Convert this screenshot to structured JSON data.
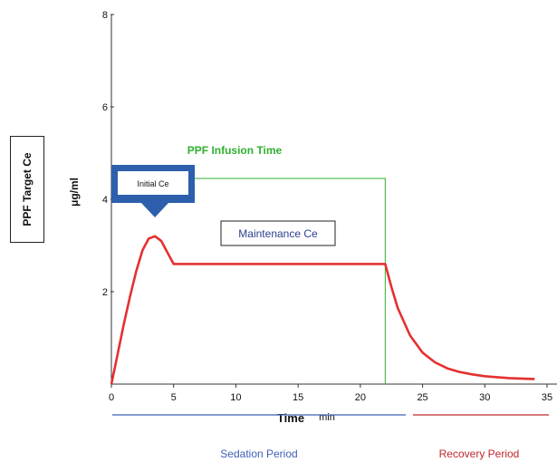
{
  "chart_data": {
    "type": "line",
    "xlabel": "Time",
    "x_unit": "min",
    "ylabel": "PPF Target Ce",
    "y_unit": "μg/ml",
    "xlim": [
      0,
      35
    ],
    "ylim": [
      0,
      8
    ],
    "x_ticks": [
      0,
      5,
      10,
      15,
      20,
      25,
      30,
      35
    ],
    "y_ticks": [
      2,
      4,
      6,
      8
    ],
    "grid": false,
    "series": [
      {
        "color": "#e53030",
        "x": [
          0,
          0.5,
          1,
          1.5,
          2,
          2.5,
          3,
          3.5,
          4,
          4.5,
          5,
          10,
          15,
          20,
          22,
          22.5,
          23,
          24,
          25,
          26,
          27,
          28,
          29,
          30,
          31,
          32,
          33,
          34
        ],
        "y": [
          0,
          0.65,
          1.3,
          1.9,
          2.45,
          2.9,
          3.15,
          3.2,
          3.1,
          2.85,
          2.6,
          2.6,
          2.6,
          2.6,
          2.6,
          2.1,
          1.65,
          1.05,
          0.68,
          0.47,
          0.34,
          0.26,
          0.21,
          0.17,
          0.15,
          0.13,
          0.12,
          0.11
        ]
      }
    ],
    "annotations": {
      "infusion_time": "PPF Infusion Time",
      "infusion_end_x": 22,
      "infusion_level_y": 4.45,
      "initial_ce": "Initial Ce",
      "maintenance_ce": "Maintenance Ce",
      "sedation_period": "Sedation Period",
      "recovery_period": "Recovery Period"
    },
    "colors": {
      "curve": "#e53030",
      "infusion": "#2fb02f",
      "callout": "#2d5fad",
      "sedation": "#3f5fb5",
      "recovery": "#c0262c"
    }
  }
}
